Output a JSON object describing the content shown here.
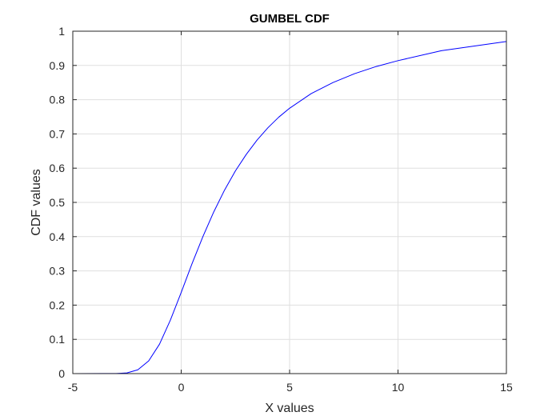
{
  "chart_data": {
    "type": "line",
    "title": "GUMBEL CDF",
    "xlabel": "X values",
    "ylabel": "CDF values",
    "xlim": [
      -5,
      15
    ],
    "ylim": [
      0,
      1
    ],
    "x_ticks": [
      "-5",
      "0",
      "5",
      "10",
      "15"
    ],
    "y_ticks": [
      "0",
      "0.1",
      "0.2",
      "0.3",
      "0.4",
      "0.5",
      "0.6",
      "0.7",
      "0.8",
      "0.9",
      "1"
    ],
    "grid": true,
    "line_color": "#0000ff",
    "series": [
      {
        "x": [
          -5,
          -3,
          -2.5,
          -2,
          -1.5,
          -1,
          -0.5,
          0,
          0.5,
          1,
          1.5,
          2,
          2.5,
          3,
          3.5,
          4,
          4.5,
          5,
          6,
          7,
          8,
          9,
          10,
          12,
          15
        ],
        "y": [
          0,
          0.0003,
          0.002,
          0.011,
          0.037,
          0.086,
          0.156,
          0.237,
          0.321,
          0.4,
          0.472,
          0.536,
          0.592,
          0.64,
          0.682,
          0.718,
          0.749,
          0.775,
          0.818,
          0.85,
          0.876,
          0.897,
          0.914,
          0.943,
          0.97
        ]
      }
    ]
  }
}
